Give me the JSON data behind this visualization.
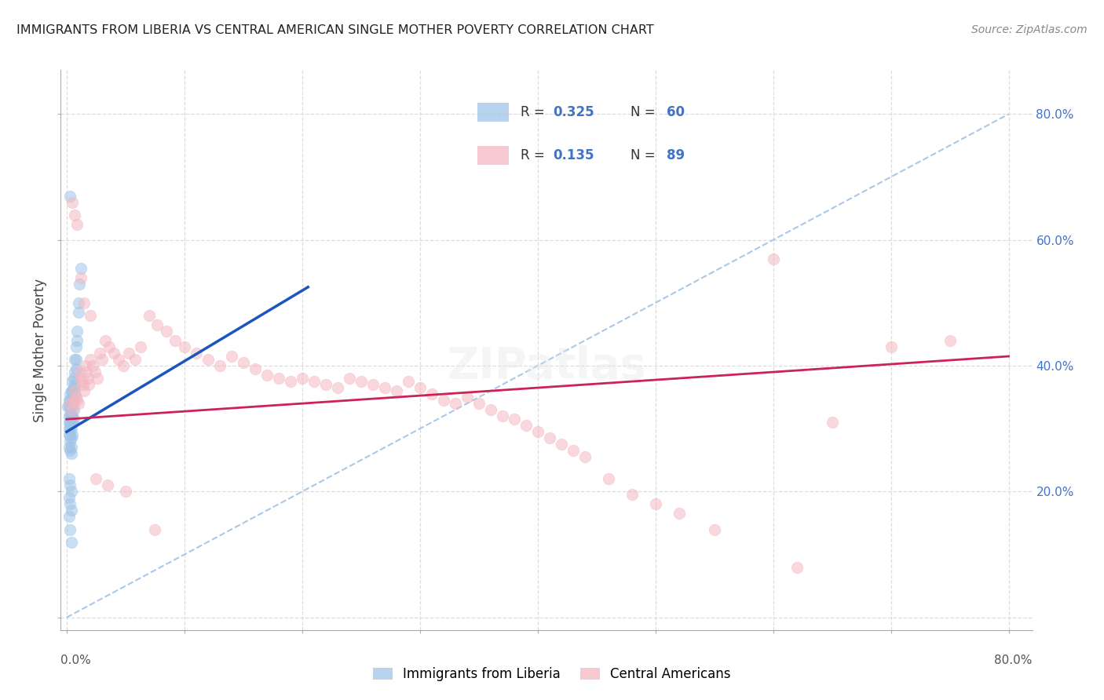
{
  "title": "IMMIGRANTS FROM LIBERIA VS CENTRAL AMERICAN SINGLE MOTHER POVERTY CORRELATION CHART",
  "source": "Source: ZipAtlas.com",
  "ylabel": "Single Mother Poverty",
  "xlim": [
    -0.005,
    0.82
  ],
  "ylim": [
    -0.02,
    0.87
  ],
  "R_blue": "0.325",
  "N_blue": "60",
  "R_pink": "0.135",
  "N_pink": "89",
  "blue_scatter_color": "#9fc5e8",
  "pink_scatter_color": "#f4b8c1",
  "blue_line_color": "#1a56bb",
  "pink_line_color": "#cc2255",
  "diag_line_color": "#aac8e8",
  "legend_label_blue": "Immigrants from Liberia",
  "legend_label_pink": "Central Americans",
  "blue_line_x0": 0.0,
  "blue_line_y0": 0.295,
  "blue_line_x1": 0.205,
  "blue_line_y1": 0.525,
  "pink_line_x0": 0.0,
  "pink_line_y0": 0.315,
  "pink_line_x1": 0.8,
  "pink_line_y1": 0.415,
  "blue_x": [
    0.001,
    0.002,
    0.002,
    0.002,
    0.002,
    0.002,
    0.002,
    0.002,
    0.003,
    0.003,
    0.003,
    0.003,
    0.003,
    0.003,
    0.003,
    0.003,
    0.003,
    0.004,
    0.004,
    0.004,
    0.004,
    0.004,
    0.004,
    0.004,
    0.004,
    0.004,
    0.005,
    0.005,
    0.005,
    0.005,
    0.005,
    0.005,
    0.006,
    0.006,
    0.006,
    0.006,
    0.006,
    0.007,
    0.007,
    0.007,
    0.007,
    0.008,
    0.008,
    0.008,
    0.009,
    0.009,
    0.01,
    0.01,
    0.011,
    0.012,
    0.002,
    0.003,
    0.004,
    0.002,
    0.003,
    0.004,
    0.002,
    0.003,
    0.004,
    0.003
  ],
  "blue_y": [
    0.335,
    0.345,
    0.335,
    0.32,
    0.31,
    0.3,
    0.29,
    0.27,
    0.355,
    0.345,
    0.335,
    0.32,
    0.31,
    0.3,
    0.29,
    0.28,
    0.265,
    0.36,
    0.345,
    0.335,
    0.32,
    0.31,
    0.3,
    0.285,
    0.27,
    0.26,
    0.375,
    0.36,
    0.34,
    0.32,
    0.31,
    0.29,
    0.38,
    0.365,
    0.345,
    0.33,
    0.315,
    0.41,
    0.39,
    0.37,
    0.355,
    0.43,
    0.41,
    0.395,
    0.455,
    0.44,
    0.5,
    0.485,
    0.53,
    0.555,
    0.22,
    0.21,
    0.2,
    0.19,
    0.18,
    0.17,
    0.16,
    0.14,
    0.12,
    0.67
  ],
  "pink_x": [
    0.003,
    0.005,
    0.006,
    0.007,
    0.008,
    0.009,
    0.01,
    0.011,
    0.012,
    0.013,
    0.014,
    0.015,
    0.016,
    0.017,
    0.018,
    0.019,
    0.02,
    0.022,
    0.024,
    0.026,
    0.028,
    0.03,
    0.033,
    0.036,
    0.04,
    0.044,
    0.048,
    0.053,
    0.058,
    0.063,
    0.07,
    0.077,
    0.085,
    0.092,
    0.1,
    0.11,
    0.12,
    0.13,
    0.14,
    0.15,
    0.16,
    0.17,
    0.18,
    0.19,
    0.2,
    0.21,
    0.22,
    0.23,
    0.24,
    0.25,
    0.26,
    0.27,
    0.28,
    0.29,
    0.3,
    0.31,
    0.32,
    0.33,
    0.34,
    0.35,
    0.36,
    0.37,
    0.38,
    0.39,
    0.4,
    0.41,
    0.42,
    0.43,
    0.44,
    0.46,
    0.48,
    0.5,
    0.52,
    0.55,
    0.6,
    0.62,
    0.65,
    0.7,
    0.75,
    0.005,
    0.007,
    0.009,
    0.012,
    0.015,
    0.02,
    0.025,
    0.035,
    0.05,
    0.075
  ],
  "pink_y": [
    0.34,
    0.33,
    0.345,
    0.36,
    0.35,
    0.345,
    0.34,
    0.39,
    0.38,
    0.375,
    0.37,
    0.36,
    0.4,
    0.39,
    0.38,
    0.37,
    0.41,
    0.4,
    0.39,
    0.38,
    0.42,
    0.41,
    0.44,
    0.43,
    0.42,
    0.41,
    0.4,
    0.42,
    0.41,
    0.43,
    0.48,
    0.465,
    0.455,
    0.44,
    0.43,
    0.42,
    0.41,
    0.4,
    0.415,
    0.405,
    0.395,
    0.385,
    0.38,
    0.375,
    0.38,
    0.375,
    0.37,
    0.365,
    0.38,
    0.375,
    0.37,
    0.365,
    0.36,
    0.375,
    0.365,
    0.355,
    0.345,
    0.34,
    0.35,
    0.34,
    0.33,
    0.32,
    0.315,
    0.305,
    0.295,
    0.285,
    0.275,
    0.265,
    0.255,
    0.22,
    0.195,
    0.18,
    0.165,
    0.14,
    0.57,
    0.08,
    0.31,
    0.43,
    0.44,
    0.66,
    0.64,
    0.625,
    0.54,
    0.5,
    0.48,
    0.22,
    0.21,
    0.2,
    0.14
  ]
}
